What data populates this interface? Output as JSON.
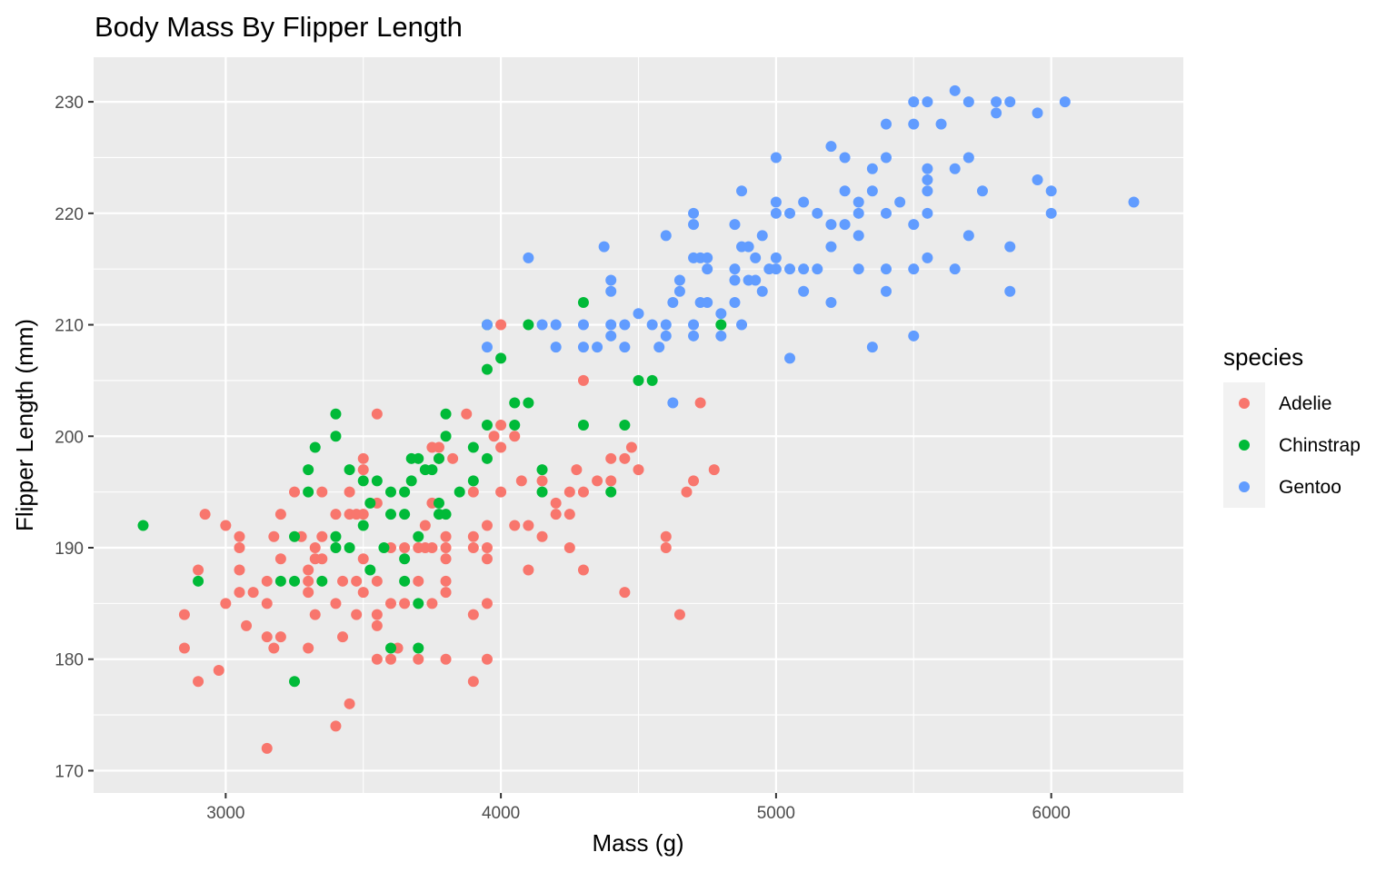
{
  "chart_data": {
    "type": "scatter",
    "title": "Body Mass By Flipper Length",
    "xlabel": "Mass (g)",
    "ylabel": "Flipper Length (mm)",
    "xlim": [
      2520,
      6480
    ],
    "ylim": [
      168,
      234
    ],
    "x_ticks": [
      3000,
      4000,
      5000,
      6000
    ],
    "y_ticks": [
      170,
      180,
      190,
      200,
      210,
      220,
      230
    ],
    "grid": true,
    "legend": {
      "title": "species",
      "position": "right"
    },
    "series": [
      {
        "name": "Adelie",
        "color": "#F8766D",
        "points": [
          [
            2850,
            184
          ],
          [
            2850,
            181
          ],
          [
            2900,
            178
          ],
          [
            2900,
            188
          ],
          [
            2925,
            193
          ],
          [
            2975,
            179
          ],
          [
            3000,
            185
          ],
          [
            3000,
            192
          ],
          [
            3050,
            191
          ],
          [
            3050,
            190
          ],
          [
            3050,
            188
          ],
          [
            3050,
            186
          ],
          [
            3075,
            183
          ],
          [
            3100,
            186
          ],
          [
            3150,
            187
          ],
          [
            3150,
            185
          ],
          [
            3150,
            182
          ],
          [
            3150,
            172
          ],
          [
            3175,
            191
          ],
          [
            3175,
            181
          ],
          [
            3200,
            193
          ],
          [
            3200,
            189
          ],
          [
            3200,
            182
          ],
          [
            3250,
            195
          ],
          [
            3275,
            191
          ],
          [
            3300,
            187
          ],
          [
            3300,
            186
          ],
          [
            3300,
            181
          ],
          [
            3300,
            188
          ],
          [
            3325,
            190
          ],
          [
            3325,
            184
          ],
          [
            3325,
            189
          ],
          [
            3350,
            191
          ],
          [
            3350,
            195
          ],
          [
            3350,
            189
          ],
          [
            3400,
            193
          ],
          [
            3400,
            185
          ],
          [
            3400,
            174
          ],
          [
            3425,
            187
          ],
          [
            3425,
            182
          ],
          [
            3450,
            193
          ],
          [
            3450,
            195
          ],
          [
            3450,
            176
          ],
          [
            3475,
            187
          ],
          [
            3475,
            184
          ],
          [
            3475,
            193
          ],
          [
            3500,
            198
          ],
          [
            3500,
            197
          ],
          [
            3500,
            193
          ],
          [
            3500,
            189
          ],
          [
            3500,
            186
          ],
          [
            3550,
            202
          ],
          [
            3550,
            194
          ],
          [
            3550,
            187
          ],
          [
            3550,
            184
          ],
          [
            3550,
            183
          ],
          [
            3550,
            180
          ],
          [
            3600,
            190
          ],
          [
            3600,
            185
          ],
          [
            3600,
            180
          ],
          [
            3625,
            181
          ],
          [
            3650,
            190
          ],
          [
            3650,
            185
          ],
          [
            3700,
            190
          ],
          [
            3700,
            187
          ],
          [
            3700,
            180
          ],
          [
            3725,
            190
          ],
          [
            3725,
            192
          ],
          [
            3750,
            199
          ],
          [
            3750,
            194
          ],
          [
            3750,
            190
          ],
          [
            3750,
            185
          ],
          [
            3775,
            199
          ],
          [
            3775,
            198
          ],
          [
            3800,
            191
          ],
          [
            3800,
            190
          ],
          [
            3800,
            189
          ],
          [
            3800,
            187
          ],
          [
            3800,
            186
          ],
          [
            3800,
            180
          ],
          [
            3825,
            198
          ],
          [
            3875,
            202
          ],
          [
            3900,
            195
          ],
          [
            3900,
            191
          ],
          [
            3900,
            190
          ],
          [
            3900,
            184
          ],
          [
            3900,
            178
          ],
          [
            3950,
            192
          ],
          [
            3950,
            190
          ],
          [
            3950,
            189
          ],
          [
            3950,
            185
          ],
          [
            3950,
            180
          ],
          [
            3975,
            200
          ],
          [
            4000,
            201
          ],
          [
            4000,
            199
          ],
          [
            4000,
            195
          ],
          [
            4000,
            210
          ],
          [
            4050,
            200
          ],
          [
            4050,
            192
          ],
          [
            4075,
            196
          ],
          [
            4100,
            192
          ],
          [
            4100,
            188
          ],
          [
            4150,
            196
          ],
          [
            4150,
            191
          ],
          [
            4200,
            194
          ],
          [
            4200,
            193
          ],
          [
            4250,
            195
          ],
          [
            4250,
            193
          ],
          [
            4250,
            190
          ],
          [
            4275,
            197
          ],
          [
            4300,
            205
          ],
          [
            4300,
            195
          ],
          [
            4300,
            188
          ],
          [
            4350,
            196
          ],
          [
            4400,
            198
          ],
          [
            4400,
            196
          ],
          [
            4450,
            198
          ],
          [
            4450,
            186
          ],
          [
            4475,
            199
          ],
          [
            4500,
            197
          ],
          [
            4600,
            191
          ],
          [
            4600,
            190
          ],
          [
            4650,
            184
          ],
          [
            4675,
            195
          ],
          [
            4700,
            196
          ],
          [
            4725,
            203
          ],
          [
            4775,
            197
          ]
        ]
      },
      {
        "name": "Chinstrap",
        "color": "#00BA38",
        "points": [
          [
            2700,
            192
          ],
          [
            2900,
            187
          ],
          [
            3200,
            187
          ],
          [
            3250,
            191
          ],
          [
            3250,
            187
          ],
          [
            3250,
            178
          ],
          [
            3300,
            197
          ],
          [
            3300,
            195
          ],
          [
            3325,
            199
          ],
          [
            3350,
            187
          ],
          [
            3400,
            202
          ],
          [
            3400,
            200
          ],
          [
            3400,
            191
          ],
          [
            3400,
            190
          ],
          [
            3450,
            197
          ],
          [
            3450,
            190
          ],
          [
            3500,
            196
          ],
          [
            3500,
            192
          ],
          [
            3525,
            194
          ],
          [
            3525,
            188
          ],
          [
            3550,
            196
          ],
          [
            3575,
            190
          ],
          [
            3600,
            195
          ],
          [
            3600,
            193
          ],
          [
            3600,
            181
          ],
          [
            3650,
            195
          ],
          [
            3650,
            193
          ],
          [
            3650,
            189
          ],
          [
            3650,
            187
          ],
          [
            3675,
            196
          ],
          [
            3675,
            198
          ],
          [
            3700,
            198
          ],
          [
            3700,
            191
          ],
          [
            3700,
            185
          ],
          [
            3700,
            181
          ],
          [
            3725,
            197
          ],
          [
            3750,
            197
          ],
          [
            3775,
            193
          ],
          [
            3775,
            194
          ],
          [
            3775,
            198
          ],
          [
            3800,
            202
          ],
          [
            3800,
            200
          ],
          [
            3800,
            193
          ],
          [
            3850,
            195
          ],
          [
            3900,
            199
          ],
          [
            3900,
            196
          ],
          [
            3950,
            210
          ],
          [
            3950,
            206
          ],
          [
            3950,
            201
          ],
          [
            3950,
            198
          ],
          [
            4000,
            207
          ],
          [
            4050,
            203
          ],
          [
            4050,
            201
          ],
          [
            4100,
            210
          ],
          [
            4100,
            203
          ],
          [
            4150,
            197
          ],
          [
            4150,
            195
          ],
          [
            4300,
            212
          ],
          [
            4300,
            201
          ],
          [
            4400,
            195
          ],
          [
            4450,
            201
          ],
          [
            4500,
            205
          ],
          [
            4550,
            205
          ],
          [
            4800,
            210
          ]
        ]
      },
      {
        "name": "Gentoo",
        "color": "#619CFF",
        "points": [
          [
            3950,
            208
          ],
          [
            3950,
            210
          ],
          [
            4100,
            216
          ],
          [
            4150,
            210
          ],
          [
            4200,
            210
          ],
          [
            4200,
            208
          ],
          [
            4300,
            210
          ],
          [
            4300,
            208
          ],
          [
            4350,
            208
          ],
          [
            4375,
            217
          ],
          [
            4400,
            214
          ],
          [
            4400,
            213
          ],
          [
            4400,
            210
          ],
          [
            4400,
            209
          ],
          [
            4450,
            210
          ],
          [
            4450,
            208
          ],
          [
            4500,
            211
          ],
          [
            4550,
            210
          ],
          [
            4575,
            208
          ],
          [
            4600,
            218
          ],
          [
            4600,
            210
          ],
          [
            4600,
            209
          ],
          [
            4625,
            203
          ],
          [
            4625,
            212
          ],
          [
            4650,
            214
          ],
          [
            4650,
            213
          ],
          [
            4700,
            220
          ],
          [
            4700,
            219
          ],
          [
            4700,
            216
          ],
          [
            4700,
            210
          ],
          [
            4700,
            209
          ],
          [
            4725,
            216
          ],
          [
            4725,
            212
          ],
          [
            4750,
            216
          ],
          [
            4750,
            215
          ],
          [
            4750,
            212
          ],
          [
            4800,
            211
          ],
          [
            4800,
            209
          ],
          [
            4850,
            219
          ],
          [
            4850,
            215
          ],
          [
            4850,
            214
          ],
          [
            4850,
            212
          ],
          [
            4875,
            222
          ],
          [
            4875,
            217
          ],
          [
            4875,
            210
          ],
          [
            4900,
            217
          ],
          [
            4900,
            214
          ],
          [
            4925,
            216
          ],
          [
            4925,
            214
          ],
          [
            4950,
            218
          ],
          [
            4950,
            213
          ],
          [
            4975,
            215
          ],
          [
            5000,
            225
          ],
          [
            5000,
            221
          ],
          [
            5000,
            220
          ],
          [
            5000,
            216
          ],
          [
            5000,
            215
          ],
          [
            5050,
            220
          ],
          [
            5050,
            215
          ],
          [
            5050,
            207
          ],
          [
            5100,
            221
          ],
          [
            5100,
            215
          ],
          [
            5100,
            213
          ],
          [
            5150,
            220
          ],
          [
            5150,
            215
          ],
          [
            5200,
            226
          ],
          [
            5200,
            219
          ],
          [
            5200,
            217
          ],
          [
            5200,
            212
          ],
          [
            5250,
            225
          ],
          [
            5250,
            222
          ],
          [
            5250,
            219
          ],
          [
            5300,
            221
          ],
          [
            5300,
            220
          ],
          [
            5300,
            218
          ],
          [
            5300,
            215
          ],
          [
            5350,
            224
          ],
          [
            5350,
            222
          ],
          [
            5350,
            208
          ],
          [
            5400,
            228
          ],
          [
            5400,
            225
          ],
          [
            5400,
            220
          ],
          [
            5400,
            215
          ],
          [
            5400,
            213
          ],
          [
            5450,
            221
          ],
          [
            5500,
            230
          ],
          [
            5500,
            228
          ],
          [
            5500,
            219
          ],
          [
            5500,
            215
          ],
          [
            5500,
            209
          ],
          [
            5550,
            230
          ],
          [
            5550,
            224
          ],
          [
            5550,
            223
          ],
          [
            5550,
            222
          ],
          [
            5550,
            220
          ],
          [
            5550,
            216
          ],
          [
            5600,
            228
          ],
          [
            5650,
            231
          ],
          [
            5650,
            224
          ],
          [
            5650,
            215
          ],
          [
            5700,
            230
          ],
          [
            5700,
            225
          ],
          [
            5700,
            218
          ],
          [
            5750,
            222
          ],
          [
            5800,
            230
          ],
          [
            5800,
            229
          ],
          [
            5850,
            230
          ],
          [
            5850,
            217
          ],
          [
            5850,
            213
          ],
          [
            5950,
            229
          ],
          [
            5950,
            223
          ],
          [
            6000,
            222
          ],
          [
            6000,
            220
          ],
          [
            6050,
            230
          ],
          [
            6300,
            221
          ]
        ]
      }
    ]
  }
}
